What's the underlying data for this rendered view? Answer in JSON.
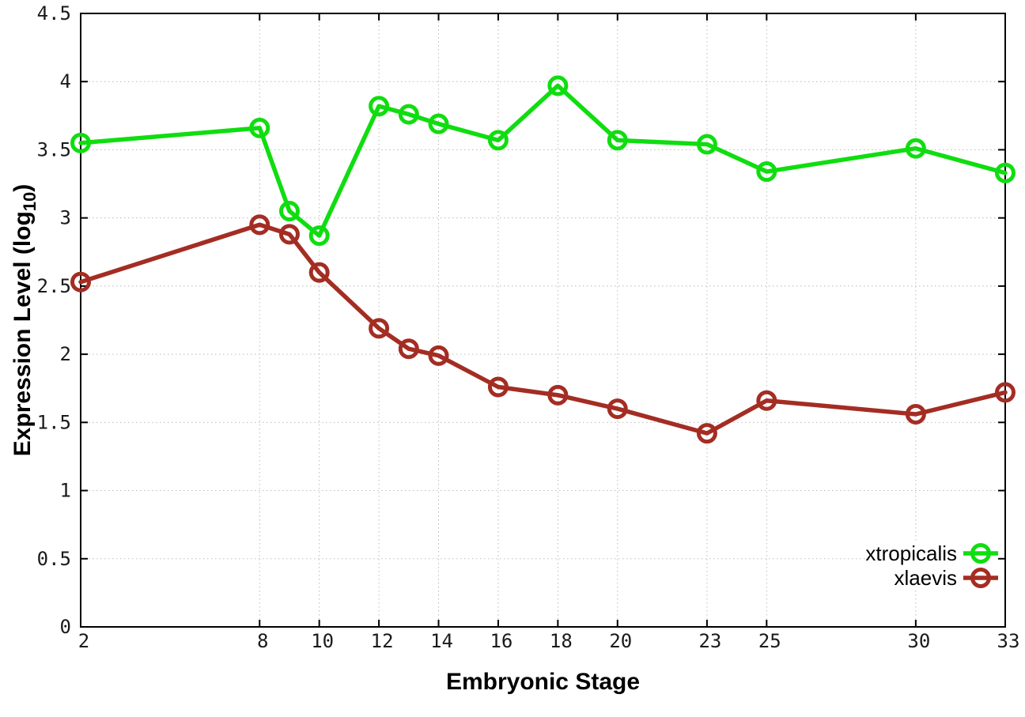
{
  "figure": {
    "background": "#ffffff"
  },
  "chart_data": {
    "type": "line",
    "title": "",
    "xlabel": "Embryonic Stage",
    "ylabel": "Expression Level (log10)",
    "ylabel_parts": [
      {
        "text": "Expression Level (log"
      },
      {
        "text": "10",
        "subscript": true
      },
      {
        "text": ")"
      }
    ],
    "xlim": [
      2,
      33
    ],
    "ylim": [
      0,
      4.5
    ],
    "x": [
      2,
      8,
      9,
      10,
      12,
      13,
      14,
      16,
      18,
      20,
      23,
      25,
      30,
      33
    ],
    "xtick_values": [
      2,
      8,
      10,
      12,
      14,
      16,
      18,
      20,
      23,
      25,
      30,
      33
    ],
    "xtick_labels": [
      "2",
      "8",
      "10",
      "12",
      "14",
      "16",
      "18",
      "20",
      "23",
      "25",
      "30",
      "33"
    ],
    "ytick_values": [
      0,
      0.5,
      1,
      1.5,
      2,
      2.5,
      3,
      3.5,
      4,
      4.5
    ],
    "ytick_labels": [
      "0",
      "0.5",
      "1",
      "1.5",
      "2",
      "2.5",
      "3",
      "3.5",
      "4",
      "4.5"
    ],
    "grid": true,
    "x_gridlines": [
      8,
      10,
      12,
      14,
      16,
      18,
      20,
      23,
      25,
      30
    ],
    "y_gridlines": [
      0.5,
      1,
      1.5,
      2,
      2.5,
      3,
      3.5,
      4
    ],
    "legend_position": "bottom-right-inside",
    "marker": "open-circle",
    "series": [
      {
        "name": "xtropicalis",
        "color": "#10dd10",
        "values": [
          3.55,
          3.66,
          3.05,
          2.87,
          3.82,
          3.76,
          3.69,
          3.57,
          3.97,
          3.57,
          3.54,
          3.34,
          3.51,
          3.33
        ]
      },
      {
        "name": "xlaevis",
        "color": "#a42d23",
        "values": [
          2.53,
          2.95,
          2.88,
          2.6,
          2.19,
          2.04,
          1.99,
          1.76,
          1.7,
          1.6,
          1.42,
          1.66,
          1.56,
          1.72
        ]
      }
    ],
    "axis_color": "#000000",
    "grid_color": "#bbbbbb",
    "text_color": "#1a1a1a"
  }
}
